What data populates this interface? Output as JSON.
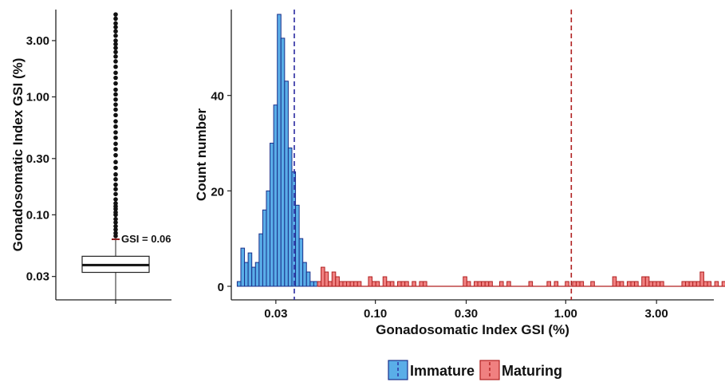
{
  "chart_data": [
    {
      "type": "box",
      "ylabel": "Gonadosomatic Index GSI (%)",
      "y_scale": "log",
      "ylim": [
        0.019,
        5.5
      ],
      "yticks": [
        0.03,
        0.1,
        0.3,
        1.0,
        3.0
      ],
      "ytick_labels": [
        "0.03",
        "0.10",
        "0.30",
        "1.00",
        "3.00"
      ],
      "box": {
        "lower_whisker": 0.0185,
        "q1": 0.0325,
        "median": 0.0375,
        "q3": 0.0445,
        "upper_whisker": 0.062
      },
      "annotation": {
        "text": "GSI = 0.06",
        "value": 0.062,
        "color": "#8b1a1a"
      },
      "outliers": [
        0.066,
        0.07,
        0.075,
        0.08,
        0.086,
        0.092,
        0.1,
        0.105,
        0.112,
        0.118,
        0.125,
        0.135,
        0.15,
        0.165,
        0.18,
        0.2,
        0.22,
        0.25,
        0.28,
        0.32,
        0.36,
        0.4,
        0.45,
        0.5,
        0.56,
        0.62,
        0.7,
        0.78,
        0.86,
        0.95,
        1.05,
        1.15,
        1.3,
        1.45,
        1.6,
        1.8,
        2.0,
        2.2,
        2.4,
        2.6,
        2.8,
        3.0,
        3.3,
        3.6,
        3.9,
        4.2,
        4.6,
        5.0
      ]
    },
    {
      "type": "bar",
      "xlabel": "Gonadosomatic Index GSI (%)",
      "ylabel": "Count number",
      "x_scale": "log",
      "xlim": [
        0.0175,
        6.0
      ],
      "ylim": [
        0,
        58
      ],
      "xticks": [
        0.03,
        0.1,
        0.3,
        1.0,
        3.0
      ],
      "xtick_labels": [
        "0.03",
        "0.10",
        "0.30",
        "1.00",
        "3.00"
      ],
      "yticks": [
        0,
        20,
        40
      ],
      "ytick_labels": [
        "0",
        "20",
        "40"
      ],
      "bin_edges_log10": [
        -1.74,
        -0.74
      ],
      "series": [
        {
          "name": "Immature",
          "color": "#5aaee8",
          "edge": "#1a2f8a",
          "x_start": 0.0188,
          "log_bin_width": 0.01915,
          "values": [
            1,
            8,
            5,
            7,
            4,
            5,
            11,
            16,
            20,
            30,
            38,
            57,
            52,
            43,
            29,
            24,
            17,
            10,
            5,
            3,
            1,
            1
          ]
        },
        {
          "name": "Maturing",
          "color": "#f08080",
          "edge": "#b02020",
          "x_start": 0.0188,
          "log_bin_width": 0.01915,
          "values": [
            0,
            0,
            0,
            0,
            0,
            0,
            0,
            0,
            0,
            0,
            0,
            0,
            0,
            0,
            0,
            0,
            0,
            0,
            0,
            0,
            0,
            0,
            1,
            4,
            3,
            1,
            3,
            2,
            1,
            1,
            1,
            1,
            1,
            1,
            0,
            0,
            2,
            1,
            1,
            0,
            2,
            1,
            1,
            0,
            1,
            1,
            1,
            0,
            1,
            0,
            1,
            1,
            0,
            0,
            0,
            0,
            0,
            0,
            0,
            0,
            0,
            0,
            2,
            1,
            0,
            1,
            1,
            1,
            1,
            1,
            0,
            0,
            1,
            0,
            1,
            0,
            0,
            0,
            0,
            0,
            1,
            0,
            0,
            0,
            0,
            1,
            0,
            1,
            0,
            0,
            1,
            0,
            1,
            1,
            1,
            0,
            0,
            1,
            0,
            0,
            0,
            0,
            0,
            2,
            1,
            1,
            0,
            1,
            1,
            1,
            0,
            2,
            2,
            1,
            1,
            1,
            1,
            0,
            0,
            0,
            0,
            0,
            1,
            1,
            1,
            1,
            1,
            3,
            1,
            1,
            0,
            1,
            0,
            1
          ]
        }
      ],
      "vlines": [
        {
          "x": 0.0375,
          "color": "#2a2aa0",
          "style": "dashed"
        },
        {
          "x": 1.07,
          "color": "#b02020",
          "style": "dashed"
        }
      ],
      "legend": {
        "position": "bottom",
        "entries": [
          "Immature",
          "Maturing"
        ]
      }
    }
  ]
}
